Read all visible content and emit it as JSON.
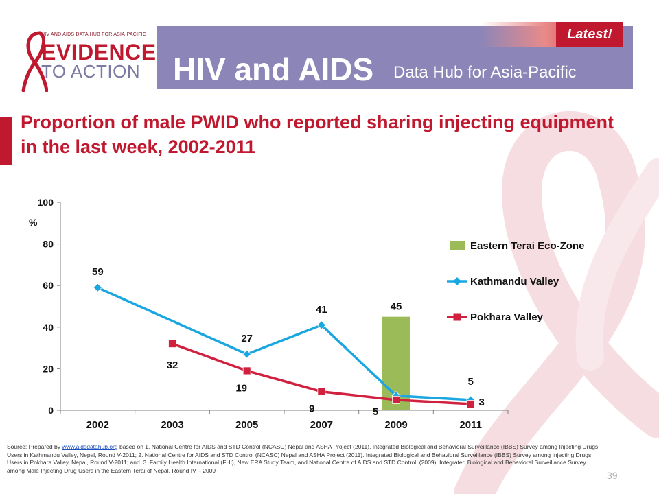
{
  "header": {
    "logo_tagline": "HIV AND AIDS DATA HUB FOR ASIA-PACIFIC",
    "logo_line1": "EVIDENCE",
    "logo_line2": "TO ACTION",
    "title": "HIV and AIDS",
    "subtitle": "Data Hub for Asia-Pacific",
    "latest_badge": "Latest!"
  },
  "slide": {
    "title": "Proportion of male PWID who reported sharing injecting equipment in the last week, 2002-2011",
    "page_number": "39"
  },
  "source": {
    "prefix": "Source: Prepared by ",
    "link_text": "www.aidsdatahub.org",
    "text": " based on 1. National Centre for AIDS and STD Control (NCASC) Nepal and ASHA Project (2011). Integrated Biological and Behavioral Surveillance (IBBS) Survey among Injecting Drugs Users in Kathmandu Valley, Nepal, Round V-2011; 2. National Centre for AIDS and STD Control (NCASC) Nepal and ASHA Project (2011). Integrated Biological and Behavioral Surveillance (IBBS) Survey among Injecting Drugs Users in Pokhara Valley, Nepal, Round V-2011; and. 3. Family Health International (FHI), New ERA Study Team, and National Centre of AIDS and STD Control. (2009). Integrated Biological and Behavioral Surveillance Survey among Male Injecting Drug Users in the Eastern Terai of Nepal. Round IV – 2009"
  },
  "colors": {
    "brand_red": "#c0182f",
    "header_purple": "#8c86b8",
    "bar_green": "#9bbb59",
    "kathmandu_blue": "#1aa6e0",
    "pokhara_red": "#d0213f"
  },
  "chart_data": {
    "type": "bar",
    "title": "",
    "xlabel": "",
    "ylabel": "%",
    "ylim": [
      0,
      100
    ],
    "yticks": [
      0,
      20,
      40,
      60,
      80,
      100
    ],
    "categories": [
      "2002",
      "2003",
      "2005",
      "2007",
      "2009",
      "2011"
    ],
    "grid": false,
    "legend_position": "right",
    "series": [
      {
        "name": "Eastern Terai Eco-Zone",
        "type": "bar",
        "color": "#9bbb59",
        "marker": "square",
        "values": [
          null,
          null,
          null,
          null,
          45,
          null
        ],
        "labels": [
          null,
          null,
          null,
          null,
          "45",
          null
        ]
      },
      {
        "name": "Kathmandu Valley",
        "type": "line",
        "color": "#1aa6e0",
        "marker": "diamond",
        "values": [
          59,
          null,
          27,
          41,
          7,
          5
        ],
        "labels": [
          "59",
          null,
          "27",
          "41",
          null,
          "5"
        ]
      },
      {
        "name": "Pokhara Valley",
        "type": "line",
        "color": "#d0213f",
        "marker": "square",
        "values": [
          null,
          32,
          19,
          9,
          5,
          3
        ],
        "labels": [
          null,
          "32",
          "19",
          "9",
          "5",
          "3"
        ]
      }
    ]
  }
}
